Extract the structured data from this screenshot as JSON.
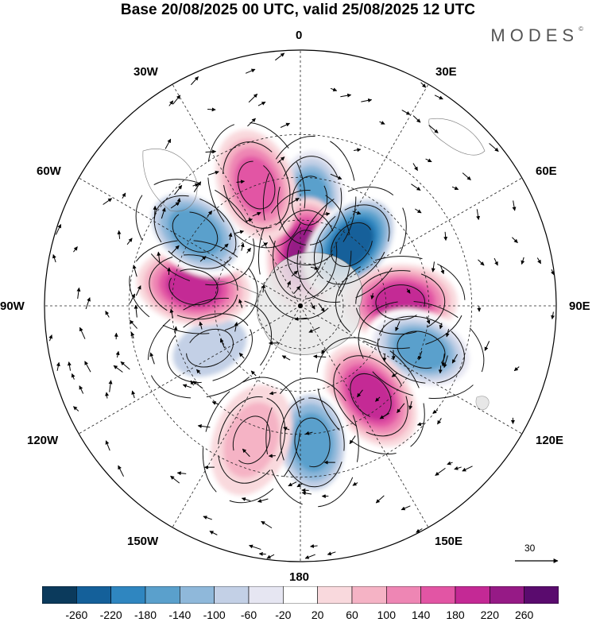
{
  "title": "Base 20/08/2025 00 UTC, valid 25/08/2025 12 UTC",
  "brand": "MODES",
  "brand_mark": "©",
  "longitude_labels": {
    "n0": "0",
    "e30": "30E",
    "e60": "60E",
    "e90": "90E",
    "e120": "120E",
    "e150": "150E",
    "s180": "180",
    "w150": "150W",
    "w120": "120W",
    "w90": "90W",
    "w60": "60W",
    "w30": "30W"
  },
  "vector_reference": {
    "label": "30"
  },
  "colorbar": {
    "colors": [
      "#0b3a5c",
      "#14609a",
      "#2f86c0",
      "#5aa0cc",
      "#8fb8da",
      "#c3d0e6",
      "#e6e6f2",
      "#ffffff",
      "#f9d9dd",
      "#f5b3c5",
      "#ee86b4",
      "#e255a4",
      "#c42995",
      "#961a86",
      "#5a0b6e"
    ],
    "ticks": [
      "-260",
      "-220",
      "-180",
      "-140",
      "-100",
      "-60",
      "-20",
      "20",
      "60",
      "100",
      "140",
      "180",
      "220",
      "260"
    ]
  },
  "anomaly_centers": [
    {
      "lon": 5,
      "lat": -53,
      "value": -180,
      "sign": "negative"
    },
    {
      "lon": 5,
      "lat": -72,
      "value": 240,
      "sign": "positive"
    },
    {
      "lon": 40,
      "lat": -62,
      "value": -240,
      "sign": "negative"
    },
    {
      "lon": 88,
      "lat": -55,
      "value": 200,
      "sign": "positive"
    },
    {
      "lon": 110,
      "lat": -45,
      "value": -170,
      "sign": "negative"
    },
    {
      "lon": 142,
      "lat": -50,
      "value": 200,
      "sign": "positive"
    },
    {
      "lon": 175,
      "lat": -42,
      "value": -160,
      "sign": "negative"
    },
    {
      "lon": -160,
      "lat": -40,
      "value": 80,
      "sign": "positive"
    },
    {
      "lon": -115,
      "lat": -55,
      "value": -80,
      "sign": "negative"
    },
    {
      "lon": -80,
      "lat": -52,
      "value": 200,
      "sign": "positive"
    },
    {
      "lon": -55,
      "lat": -45,
      "value": -160,
      "sign": "negative"
    },
    {
      "lon": -20,
      "lat": -45,
      "value": 140,
      "sign": "positive"
    }
  ]
}
